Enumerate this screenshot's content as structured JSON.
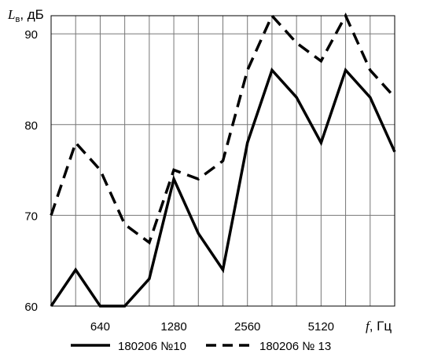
{
  "chart_data": {
    "type": "line",
    "title": "",
    "y_axis_label_main": "L",
    "y_axis_label_sub": "в",
    "y_axis_label_unit": ", дБ",
    "x_axis_label_main": "f",
    "x_axis_label_unit": ", Гц",
    "ylim": [
      60,
      92
    ],
    "y_ticks": [
      60,
      70,
      80,
      90
    ],
    "x_tick_labels": [
      "640",
      "1280",
      "2560",
      "5120"
    ],
    "grid": true,
    "legend_position": "bottom",
    "series": [
      {
        "name": "180206 №10",
        "style": "solid",
        "color": "#000000",
        "values": [
          60,
          64,
          60,
          60,
          63,
          74,
          68,
          64,
          78,
          86,
          83,
          78,
          86,
          83,
          77
        ]
      },
      {
        "name": "180206 № 13",
        "style": "dashed",
        "color": "#000000",
        "values": [
          70,
          78,
          75,
          69,
          67,
          75,
          74,
          76,
          86,
          92,
          89,
          87,
          92,
          86,
          83
        ]
      }
    ]
  }
}
